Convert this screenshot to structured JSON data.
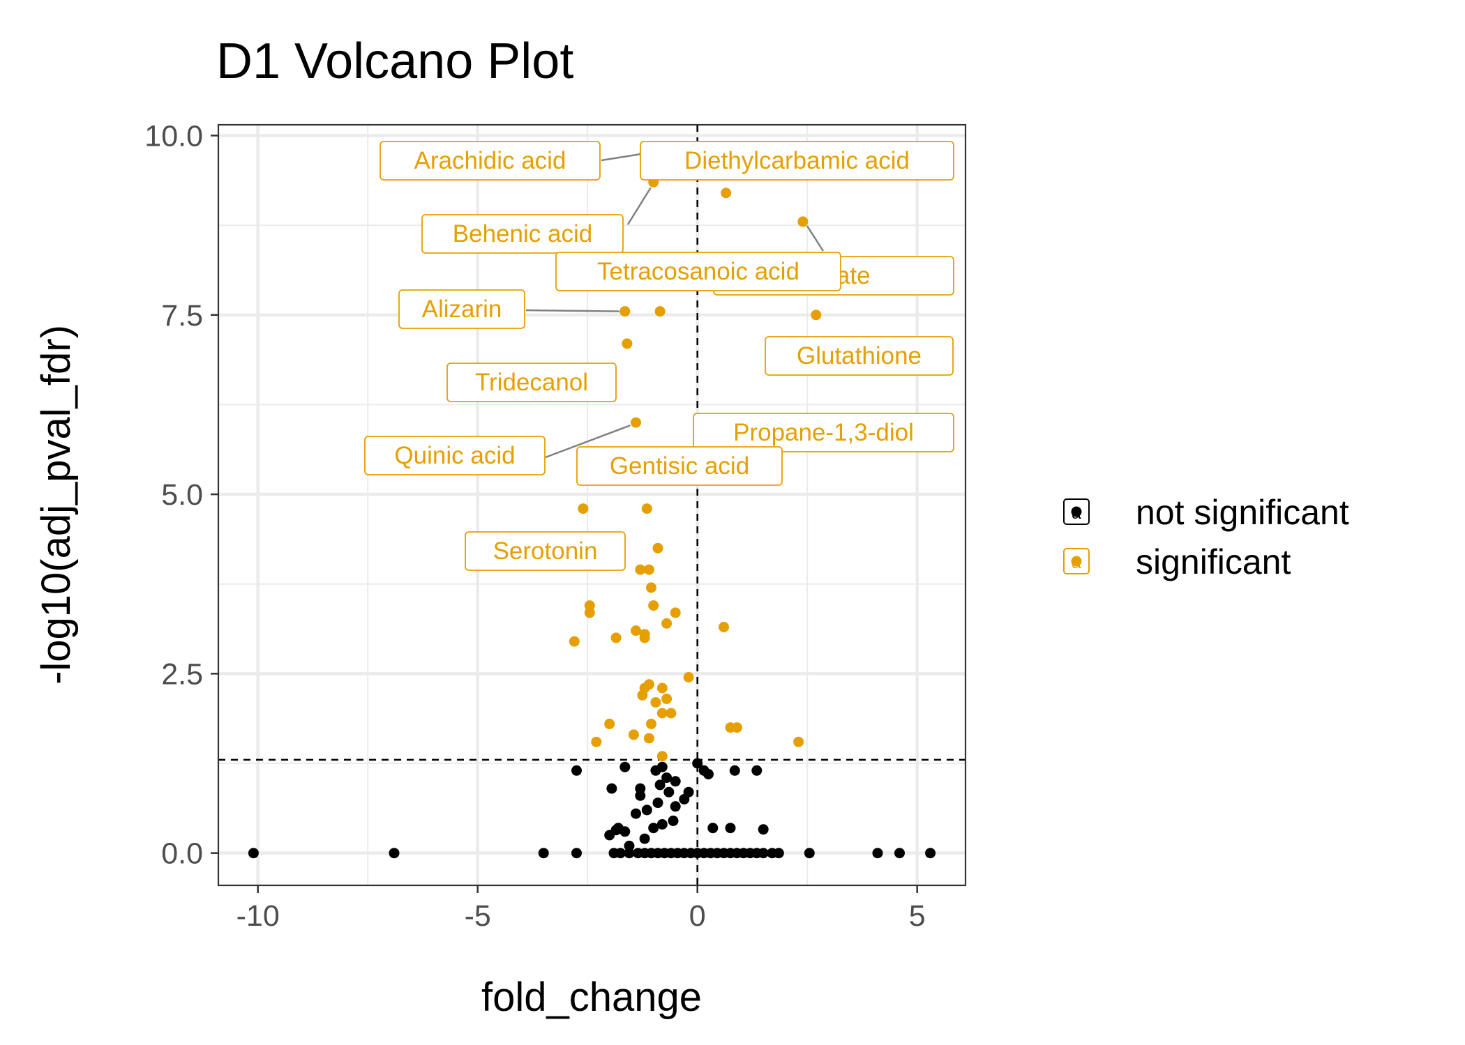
{
  "chart_data": {
    "type": "scatter",
    "title": "D1 Volcano Plot",
    "xlabel": "fold_change",
    "ylabel": "-log10(adj_pval_fdr)",
    "xlim": [
      -10.9,
      6.1
    ],
    "ylim": [
      -0.45,
      10.15
    ],
    "x_ticks": [
      -10,
      -5,
      0,
      5
    ],
    "x_tick_labels": [
      "-10",
      "-5",
      "0",
      "5"
    ],
    "y_ticks": [
      0,
      2.5,
      5,
      7.5,
      10
    ],
    "y_tick_labels": [
      "0.0",
      "2.5",
      "5.0",
      "7.5",
      "10.0"
    ],
    "grid": true,
    "threshold_lines": {
      "x": 0,
      "y": 1.3
    },
    "legend": {
      "position": "right",
      "entries": [
        {
          "label": "not significant",
          "color": "#000000"
        },
        {
          "label": "significant",
          "color": "#E69F00"
        }
      ]
    },
    "colors": {
      "significant": "#E69F00",
      "not_significant": "#000000"
    },
    "series": [
      {
        "name": "not significant",
        "points": [
          [
            -10.1,
            0
          ],
          [
            -6.9,
            0
          ],
          [
            -3.5,
            0
          ],
          [
            -2.75,
            0
          ],
          [
            -1.9,
            0
          ],
          [
            -1.75,
            0
          ],
          [
            -1.55,
            0
          ],
          [
            -1.35,
            0
          ],
          [
            -1.2,
            0
          ],
          [
            -1.05,
            0
          ],
          [
            -0.9,
            0
          ],
          [
            -0.75,
            0
          ],
          [
            -0.6,
            0
          ],
          [
            -0.45,
            0
          ],
          [
            -0.3,
            0
          ],
          [
            -0.15,
            0
          ],
          [
            0.0,
            0
          ],
          [
            0.15,
            0
          ],
          [
            0.3,
            0
          ],
          [
            0.45,
            0
          ],
          [
            0.6,
            0
          ],
          [
            0.75,
            0
          ],
          [
            0.9,
            0
          ],
          [
            1.05,
            0
          ],
          [
            1.2,
            0
          ],
          [
            1.35,
            0
          ],
          [
            1.5,
            0
          ],
          [
            1.7,
            0
          ],
          [
            1.85,
            0
          ],
          [
            2.55,
            0
          ],
          [
            4.1,
            0
          ],
          [
            4.6,
            0
          ],
          [
            5.3,
            0
          ],
          [
            -1.55,
            0.1
          ],
          [
            -1.2,
            0.2
          ],
          [
            -1.0,
            0.35
          ],
          [
            -0.8,
            0.4
          ],
          [
            -0.55,
            0.45
          ],
          [
            0.35,
            0.35
          ],
          [
            0.75,
            0.35
          ],
          [
            1.5,
            0.33
          ],
          [
            -1.65,
            0.3
          ],
          [
            -1.85,
            0.32
          ],
          [
            -2.0,
            0.25
          ],
          [
            -1.8,
            0.35
          ],
          [
            -1.4,
            0.55
          ],
          [
            -1.15,
            0.6
          ],
          [
            -0.9,
            0.7
          ],
          [
            -0.5,
            0.65
          ],
          [
            -0.3,
            0.75
          ],
          [
            -1.3,
            0.8
          ],
          [
            -0.85,
            0.95
          ],
          [
            -0.65,
            0.85
          ],
          [
            -0.2,
            0.85
          ],
          [
            -1.95,
            0.9
          ],
          [
            -1.3,
            0.9
          ],
          [
            -0.7,
            1.05
          ],
          [
            -0.5,
            1.0
          ],
          [
            -1.65,
            1.2
          ],
          [
            -0.95,
            1.15
          ],
          [
            -0.8,
            1.2
          ],
          [
            0.15,
            1.15
          ],
          [
            -2.75,
            1.15
          ],
          [
            0.25,
            1.1
          ],
          [
            0.85,
            1.15
          ],
          [
            1.35,
            1.15
          ],
          [
            0.0,
            1.25
          ]
        ]
      },
      {
        "name": "significant",
        "points": [
          [
            -1.2,
            9.75
          ],
          [
            -1.0,
            9.35
          ],
          [
            0.65,
            9.2
          ],
          [
            2.4,
            8.8
          ],
          [
            -1.65,
            7.55
          ],
          [
            -0.85,
            7.55
          ],
          [
            2.7,
            7.5
          ],
          [
            -1.6,
            7.1
          ],
          [
            -1.4,
            6.0
          ],
          [
            0.6,
            5.2
          ],
          [
            -2.6,
            4.8
          ],
          [
            -1.15,
            4.8
          ],
          [
            -0.9,
            4.25
          ],
          [
            -1.3,
            3.95
          ],
          [
            -1.1,
            3.95
          ],
          [
            -1.05,
            3.7
          ],
          [
            -1.0,
            3.45
          ],
          [
            -2.45,
            3.45
          ],
          [
            -2.45,
            3.35
          ],
          [
            -0.5,
            3.35
          ],
          [
            -0.7,
            3.2
          ],
          [
            0.6,
            3.15
          ],
          [
            -1.4,
            3.1
          ],
          [
            -1.2,
            3.05
          ],
          [
            -1.2,
            3.0
          ],
          [
            -1.85,
            3.0
          ],
          [
            -2.8,
            2.95
          ],
          [
            -0.2,
            2.45
          ],
          [
            -1.1,
            2.35
          ],
          [
            -1.2,
            2.3
          ],
          [
            -0.8,
            2.3
          ],
          [
            -1.25,
            2.2
          ],
          [
            -0.7,
            2.15
          ],
          [
            -0.95,
            2.1
          ],
          [
            -0.6,
            1.95
          ],
          [
            -0.8,
            1.95
          ],
          [
            -1.05,
            1.8
          ],
          [
            -2.0,
            1.8
          ],
          [
            0.75,
            1.75
          ],
          [
            0.9,
            1.75
          ],
          [
            -1.45,
            1.65
          ],
          [
            -1.1,
            1.6
          ],
          [
            -2.3,
            1.55
          ],
          [
            2.3,
            1.55
          ],
          [
            -0.8,
            1.35
          ]
        ]
      }
    ],
    "annotations": [
      {
        "text": "Arachidic acid",
        "x": -1.2,
        "y": 9.75
      },
      {
        "text": "Diethylcarbamic acid",
        "x": -1.2,
        "y": 9.75
      },
      {
        "text": "Behenic acid",
        "x": -1.0,
        "y": 9.35
      },
      {
        "text": "sphate",
        "x": 2.4,
        "y": 8.8
      },
      {
        "text": "Tetracosanoic acid",
        "x": 0.65,
        "y": 9.2
      },
      {
        "text": "Alizarin",
        "x": -1.65,
        "y": 7.55
      },
      {
        "text": "Glutathione",
        "x": 2.7,
        "y": 7.5
      },
      {
        "text": "Tridecanol",
        "x": -1.6,
        "y": 7.1
      },
      {
        "text": "Quinic acid",
        "x": -1.4,
        "y": 6.0
      },
      {
        "text": "Propane-1,3-diol",
        "x": 0.6,
        "y": 5.2
      },
      {
        "text": "Gentisic acid",
        "x": 0.6,
        "y": 5.2
      },
      {
        "text": "Serotonin",
        "x": -0.9,
        "y": 4.25
      }
    ]
  }
}
